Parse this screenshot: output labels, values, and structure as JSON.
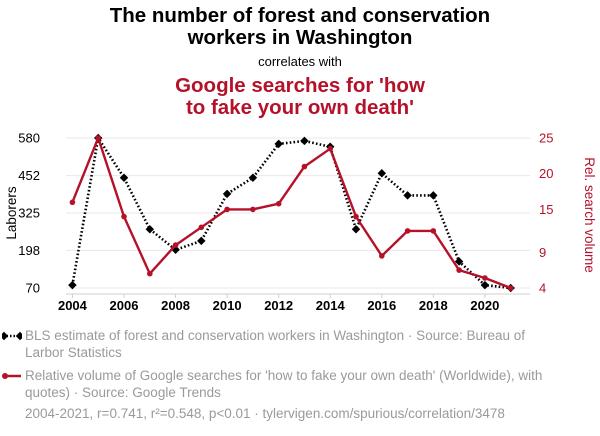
{
  "header": {
    "title_line1": "The number of forest and conservation",
    "title_line2": "workers in Washington",
    "correlates": "correlates with",
    "subtitle_line1": "Google searches for 'how",
    "subtitle_line2": "to fake your own death'"
  },
  "chart_data": {
    "type": "line",
    "x": [
      2004,
      2005,
      2006,
      2007,
      2008,
      2009,
      2010,
      2011,
      2012,
      2013,
      2014,
      2015,
      2016,
      2017,
      2018,
      2019,
      2020,
      2021
    ],
    "xticks": [
      "2004",
      "2006",
      "2008",
      "2010",
      "2012",
      "2014",
      "2016",
      "2018",
      "2020"
    ],
    "xlim": [
      2003.75,
      2021.75
    ],
    "series": [
      {
        "name": "BLS estimate of forest and conservation workers in Washington",
        "axis": "left",
        "style": "dotted",
        "marker": "diamond",
        "color": "#000000",
        "values": [
          80,
          580,
          445,
          270,
          200,
          230,
          390,
          445,
          560,
          570,
          550,
          270,
          460,
          385,
          385,
          160,
          80,
          70
        ]
      },
      {
        "name": "Relative volume of Google searches for 'how to fake your own death' (Worldwide), with quotes",
        "axis": "right",
        "style": "solid",
        "marker": "circle",
        "color": "#b5122a",
        "values": [
          16,
          25,
          14,
          6,
          10,
          12.5,
          15,
          15,
          15.8,
          21,
          23.5,
          14,
          8.5,
          12,
          12,
          6.5,
          5.4,
          4
        ]
      }
    ],
    "left_axis": {
      "label": "Laborers",
      "ylim": [
        70,
        580
      ],
      "ticks": [
        "70",
        "198",
        "325",
        "452",
        "580"
      ]
    },
    "right_axis": {
      "label": "Rel. search volume",
      "ylim": [
        4,
        25
      ],
      "ticks": [
        "4",
        "9",
        "15",
        "20",
        "25"
      ]
    },
    "grid": true
  },
  "legend": {
    "item1_text": "BLS estimate of forest and conservation workers in Washington · Source: Bureau of Larbor Statistics",
    "item2_text": "Relative volume of Google searches for 'how to fake your own death' (Worldwide), with quotes) · Source: Google Trends"
  },
  "footer": {
    "text": "2004-2021, r=0.741, r²=0.548, p<0.01 · tylervigen.com/spurious/correlation/3478"
  }
}
